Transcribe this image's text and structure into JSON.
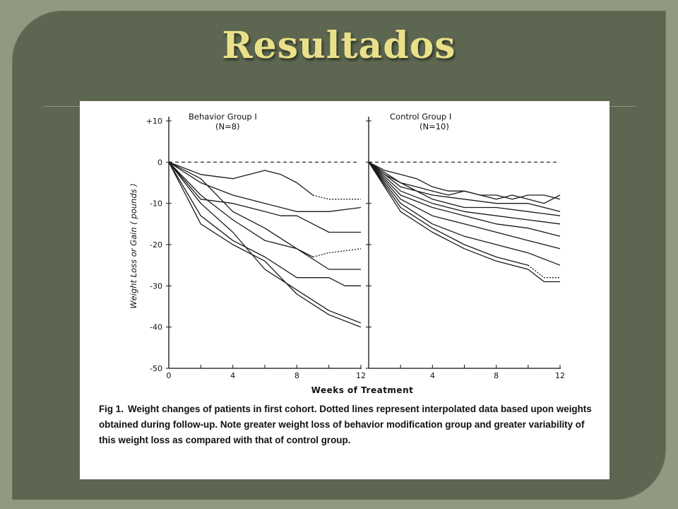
{
  "slide": {
    "title": "Resultados",
    "title_color": "#e9e08a",
    "background": "#5c6650"
  },
  "figure": {
    "caption_label": "Fig 1.",
    "caption_text": "Weight changes of patients in first cohort. Dotted lines represent interpolated data based upon weights obtained during follow-up. Note greater weight loss of behavior modification group and greater variability of this weight loss as compared with that of control group."
  },
  "chart_data": [
    {
      "type": "line",
      "panel_title": "Behavior Group I",
      "panel_subtitle": "(N=8)",
      "xlabel": "Weeks of Treatment",
      "ylabel": "Weight  Loss  or  Gain  ( pounds )",
      "xlim": [
        0,
        12
      ],
      "ylim": [
        -50,
        10
      ],
      "xticks": [
        "0",
        "4",
        "8",
        "12"
      ],
      "yticks": [
        "+10",
        "0",
        "-10",
        "-20",
        "-30",
        "-40",
        "-50"
      ],
      "baseline": 0,
      "series": [
        {
          "x": [
            0,
            2,
            4,
            6,
            7,
            8,
            9,
            10,
            11,
            12
          ],
          "y": [
            0,
            -3,
            -4,
            -2,
            -3,
            -5,
            -8,
            -9,
            -9,
            -9
          ],
          "dotted_from": 10
        },
        {
          "x": [
            0,
            2,
            4,
            6,
            8,
            10,
            12
          ],
          "y": [
            0,
            -5,
            -8,
            -10,
            -12,
            -12,
            -11
          ]
        },
        {
          "x": [
            0,
            2,
            4,
            6,
            7,
            8,
            9,
            10,
            12
          ],
          "y": [
            0,
            -9,
            -10,
            -12,
            -13,
            -13,
            -15,
            -17,
            -17
          ]
        },
        {
          "x": [
            0,
            2,
            4,
            6,
            8,
            9,
            10,
            12
          ],
          "y": [
            0,
            -4,
            -12,
            -16,
            -21,
            -23,
            -22,
            -21
          ],
          "dotted_from": 10
        },
        {
          "x": [
            0,
            2,
            4,
            6,
            7,
            8,
            10,
            12
          ],
          "y": [
            0,
            -8,
            -14,
            -19,
            -20,
            -21,
            -26,
            -26
          ]
        },
        {
          "x": [
            0,
            2,
            4,
            6,
            8,
            10,
            11,
            12
          ],
          "y": [
            0,
            -13,
            -19,
            -23,
            -28,
            -28,
            -30,
            -30
          ]
        },
        {
          "x": [
            0,
            2,
            4,
            6,
            8,
            10,
            12
          ],
          "y": [
            0,
            -10,
            -17,
            -26,
            -31,
            -36,
            -39
          ]
        },
        {
          "x": [
            0,
            2,
            4,
            6,
            8,
            10,
            12
          ],
          "y": [
            0,
            -15,
            -20,
            -24,
            -32,
            -37,
            -40
          ]
        }
      ]
    },
    {
      "type": "line",
      "panel_title": "Control Group I",
      "panel_subtitle": "(N=10)",
      "xlabel": "Weeks of Treatment",
      "xlim": [
        0,
        12
      ],
      "ylim": [
        -50,
        10
      ],
      "xticks": [
        "4",
        "8",
        "12"
      ],
      "baseline": 0,
      "series": [
        {
          "x": [
            0,
            1,
            2,
            3,
            4,
            5,
            6,
            7,
            8,
            9,
            10,
            11,
            12
          ],
          "y": [
            0,
            -2,
            -3,
            -4,
            -6,
            -7,
            -7,
            -8,
            -8,
            -9,
            -8,
            -8,
            -9
          ]
        },
        {
          "x": [
            0,
            1,
            2,
            3,
            4,
            5,
            6,
            7,
            8,
            9,
            10,
            11,
            12
          ],
          "y": [
            0,
            -3,
            -5,
            -6,
            -7,
            -8,
            -7,
            -8,
            -9,
            -8,
            -9,
            -10,
            -8
          ]
        },
        {
          "x": [
            0,
            2,
            4,
            6,
            8,
            10,
            12
          ],
          "y": [
            0,
            -6,
            -8,
            -9,
            -10,
            -10,
            -12
          ]
        },
        {
          "x": [
            0,
            2,
            4,
            6,
            8,
            10,
            12
          ],
          "y": [
            0,
            -5,
            -9,
            -11,
            -11,
            -12,
            -13
          ]
        },
        {
          "x": [
            0,
            2,
            4,
            6,
            8,
            10,
            12
          ],
          "y": [
            0,
            -7,
            -10,
            -12,
            -13,
            -14,
            -15
          ]
        },
        {
          "x": [
            0,
            2,
            4,
            6,
            8,
            10,
            12
          ],
          "y": [
            0,
            -8,
            -11,
            -13,
            -15,
            -16,
            -18
          ]
        },
        {
          "x": [
            0,
            2,
            4,
            6,
            8,
            10,
            12
          ],
          "y": [
            0,
            -9,
            -13,
            -15,
            -17,
            -19,
            -21
          ]
        },
        {
          "x": [
            0,
            2,
            4,
            6,
            8,
            10,
            12
          ],
          "y": [
            0,
            -10,
            -15,
            -18,
            -20,
            -22,
            -25
          ]
        },
        {
          "x": [
            0,
            2,
            4,
            6,
            8,
            10,
            11,
            12
          ],
          "y": [
            0,
            -11,
            -16,
            -20,
            -23,
            -25,
            -28,
            -28
          ],
          "dotted_from": 11
        },
        {
          "x": [
            0,
            2,
            4,
            6,
            8,
            10,
            11,
            12
          ],
          "y": [
            0,
            -12,
            -17,
            -21,
            -24,
            -26,
            -29,
            -29
          ]
        }
      ]
    }
  ]
}
